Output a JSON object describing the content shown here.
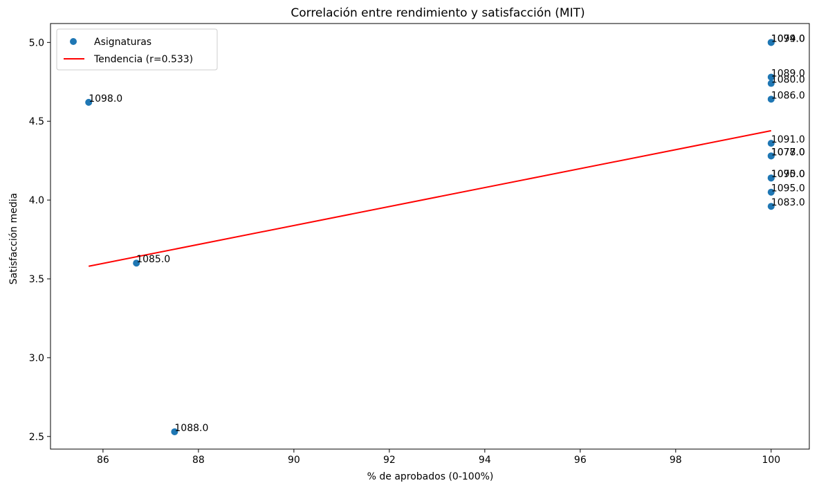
{
  "chart_data": {
    "type": "scatter",
    "title": "Correlación entre rendimiento y satisfacción (MIT)",
    "xlabel": "% de aprobados (0-100%)",
    "ylabel": "Satisfacción media",
    "xlim": [
      84.9,
      100.8
    ],
    "ylim": [
      2.42,
      5.12
    ],
    "xticks": [
      86,
      88,
      90,
      92,
      94,
      96,
      98,
      100
    ],
    "yticks": [
      2.5,
      3.0,
      3.5,
      4.0,
      4.5,
      5.0
    ],
    "grid": false,
    "legend_position": "top-left",
    "series": [
      {
        "name": "Asignaturas",
        "color": "#1f77b4",
        "points": [
          {
            "x": 85.7,
            "y": 4.62,
            "label": "1098.0"
          },
          {
            "x": 86.7,
            "y": 3.6,
            "label": "1085.0"
          },
          {
            "x": 87.5,
            "y": 2.53,
            "label": "1088.0"
          },
          {
            "x": 100.0,
            "y": 5.0,
            "label": "1079.0"
          },
          {
            "x": 100.0,
            "y": 5.0,
            "label": "1094.0"
          },
          {
            "x": 100.0,
            "y": 4.78,
            "label": "1089.0"
          },
          {
            "x": 100.0,
            "y": 4.74,
            "label": "1080.0"
          },
          {
            "x": 100.0,
            "y": 4.64,
            "label": "1086.0"
          },
          {
            "x": 100.0,
            "y": 4.36,
            "label": "1091.0"
          },
          {
            "x": 100.0,
            "y": 4.28,
            "label": "1077.0"
          },
          {
            "x": 100.0,
            "y": 4.28,
            "label": "1078.0"
          },
          {
            "x": 100.0,
            "y": 4.14,
            "label": "1090.0"
          },
          {
            "x": 100.0,
            "y": 4.14,
            "label": "1075.0"
          },
          {
            "x": 100.0,
            "y": 4.05,
            "label": "1095.0"
          },
          {
            "x": 100.0,
            "y": 3.96,
            "label": "1083.0"
          }
        ]
      }
    ],
    "trend": {
      "name": "Tendencia (r=0.533)",
      "color": "#ff0000",
      "x": [
        85.7,
        100.0
      ],
      "y": [
        3.58,
        4.44
      ]
    }
  }
}
